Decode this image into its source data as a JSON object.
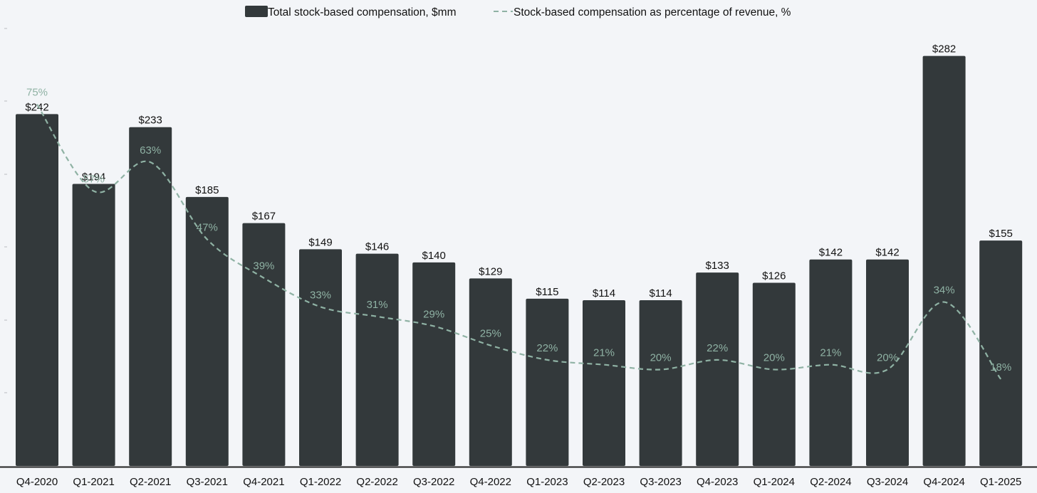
{
  "chart_data": {
    "type": "bar",
    "title": "",
    "xlabel": "",
    "ylabel": "",
    "categories": [
      "Q4-2020",
      "Q1-2021",
      "Q2-2021",
      "Q3-2021",
      "Q4-2021",
      "Q1-2022",
      "Q2-2022",
      "Q3-2022",
      "Q4-2022",
      "Q1-2023",
      "Q2-2023",
      "Q3-2023",
      "Q4-2023",
      "Q1-2024",
      "Q2-2024",
      "Q3-2024",
      "Q4-2024",
      "Q1-2025"
    ],
    "series": [
      {
        "name": "Total stock-based compensation, $mm",
        "kind": "bar",
        "values": [
          242,
          194,
          233,
          185,
          167,
          149,
          146,
          140,
          129,
          115,
          114,
          114,
          133,
          126,
          142,
          142,
          282,
          155
        ],
        "labels": [
          "$242",
          "$194",
          "$233",
          "$185",
          "$167",
          "$149",
          "$146",
          "$140",
          "$129",
          "$115",
          "$114",
          "$114",
          "$133",
          "$126",
          "$142",
          "$142",
          "$282",
          "$155"
        ],
        "color": "#33393b"
      },
      {
        "name": "Stock-based compensation as percentage of revenue, %",
        "kind": "line",
        "style": "dashed",
        "values": [
          75,
          57,
          63,
          47,
          39,
          33,
          31,
          29,
          25,
          22,
          21,
          20,
          22,
          20,
          21,
          20,
          34,
          18
        ],
        "labels": [
          "75%",
          "57%",
          "63%",
          "47%",
          "39%",
          "33%",
          "31%",
          "29%",
          "25%",
          "22%",
          "21%",
          "20%",
          "22%",
          "20%",
          "21%",
          "20%",
          "34%",
          "18%"
        ],
        "color": "#8fb2a4"
      }
    ],
    "bar_ylim": [
      0,
      295
    ],
    "line_ylim": [
      0,
      90
    ],
    "legend": "top-center",
    "grid": false
  }
}
